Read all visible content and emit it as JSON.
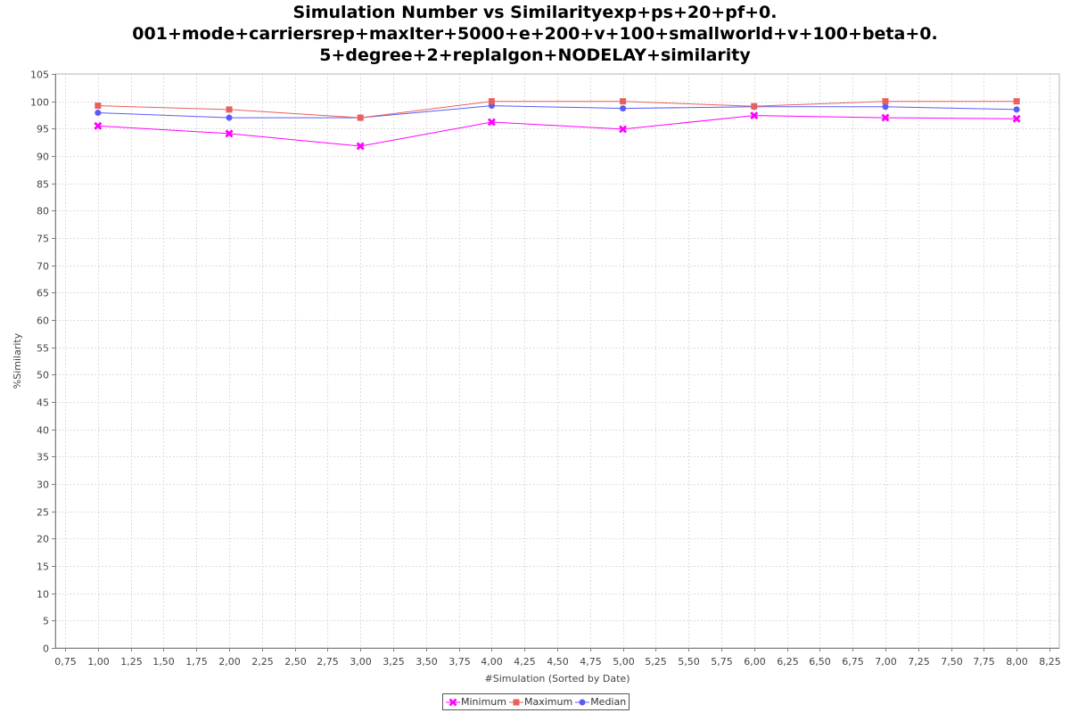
{
  "chart_data": {
    "type": "line",
    "title_lines": [
      "Simulation Number vs Similarityexp+ps+20+pf+0.",
      "001+mode+carriersrep+maxIter+5000+e+200+v+100+smallworld+v+100+beta+0.",
      "5+degree+2+replalgon+NODELAY+similarity"
    ],
    "xlabel": "#Simulation (Sorted by Date)",
    "ylabel": "%Similarity",
    "xlim": [
      0.675,
      8.325
    ],
    "ylim": [
      0,
      105
    ],
    "x_ticks": [
      0.75,
      1.0,
      1.25,
      1.5,
      1.75,
      2.0,
      2.25,
      2.5,
      2.75,
      3.0,
      3.25,
      3.5,
      3.75,
      4.0,
      4.25,
      4.5,
      4.75,
      5.0,
      5.25,
      5.5,
      5.75,
      6.0,
      6.25,
      6.5,
      6.75,
      7.0,
      7.25,
      7.5,
      7.75,
      8.0,
      8.25
    ],
    "x_tick_labels": [
      "0,75",
      "1,00",
      "1,25",
      "1,50",
      "1,75",
      "2,00",
      "2,25",
      "2,50",
      "2,75",
      "3,00",
      "3,25",
      "3,50",
      "3,75",
      "4,00",
      "4,25",
      "4,50",
      "4,75",
      "5,00",
      "5,25",
      "5,50",
      "5,75",
      "6,00",
      "6,25",
      "6,50",
      "6,75",
      "7,00",
      "7,25",
      "7,50",
      "7,75",
      "8,00",
      "8,25"
    ],
    "y_ticks": [
      0,
      5,
      10,
      15,
      20,
      25,
      30,
      35,
      40,
      45,
      50,
      55,
      60,
      65,
      70,
      75,
      80,
      85,
      90,
      95,
      100,
      105
    ],
    "y_tick_labels": [
      "0",
      "5",
      "10",
      "15",
      "20",
      "25",
      "30",
      "35",
      "40",
      "45",
      "50",
      "55",
      "60",
      "65",
      "70",
      "75",
      "80",
      "85",
      "90",
      "95",
      "100",
      "105"
    ],
    "x": [
      1,
      2,
      3,
      4,
      5,
      6,
      7,
      8
    ],
    "series": [
      {
        "name": "Minimum",
        "values": [
          95.5,
          94.1,
          91.8,
          96.2,
          94.9,
          97.4,
          97.0,
          96.8
        ],
        "color": "#ff00ff",
        "marker": "x"
      },
      {
        "name": "Maximum",
        "values": [
          99.2,
          98.5,
          97.0,
          100.0,
          100.0,
          99.1,
          100.0,
          100.0
        ],
        "color": "#e8605e",
        "marker": "square"
      },
      {
        "name": "Median",
        "values": [
          97.9,
          97.0,
          97.0,
          99.2,
          98.7,
          99.0,
          99.0,
          98.5
        ],
        "color": "#5b5bf5",
        "marker": "circle"
      }
    ],
    "grid": true,
    "legend_position": "bottom"
  }
}
